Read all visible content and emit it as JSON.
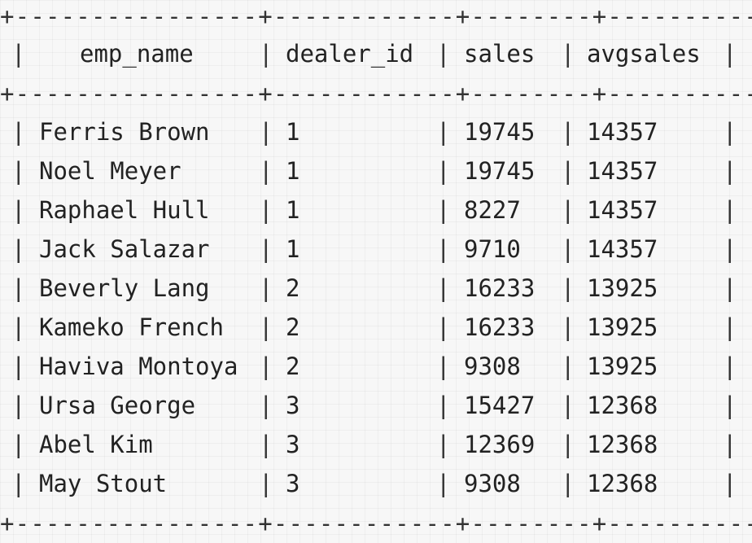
{
  "table": {
    "border_line": "+----------------+------------+--------+-----------+",
    "pipe": "|",
    "columns": [
      "emp_name",
      "dealer_id",
      "sales",
      "avgsales"
    ],
    "rows": [
      {
        "emp_name": "Ferris Brown",
        "dealer_id": "1",
        "sales": "19745",
        "avgsales": "14357"
      },
      {
        "emp_name": "Noel Meyer",
        "dealer_id": "1",
        "sales": "19745",
        "avgsales": "14357"
      },
      {
        "emp_name": "Raphael Hull",
        "dealer_id": "1",
        "sales": "8227",
        "avgsales": "14357"
      },
      {
        "emp_name": "Jack Salazar",
        "dealer_id": "1",
        "sales": "9710",
        "avgsales": "14357"
      },
      {
        "emp_name": "Beverly Lang",
        "dealer_id": "2",
        "sales": "16233",
        "avgsales": "13925"
      },
      {
        "emp_name": "Kameko French",
        "dealer_id": "2",
        "sales": "16233",
        "avgsales": "13925"
      },
      {
        "emp_name": "Haviva Montoya",
        "dealer_id": "2",
        "sales": "9308",
        "avgsales": "13925"
      },
      {
        "emp_name": "Ursa George",
        "dealer_id": "3",
        "sales": "15427",
        "avgsales": "12368"
      },
      {
        "emp_name": "Abel Kim",
        "dealer_id": "3",
        "sales": "12369",
        "avgsales": "12368"
      },
      {
        "emp_name": "May Stout",
        "dealer_id": "3",
        "sales": "9308",
        "avgsales": "12368"
      }
    ]
  }
}
